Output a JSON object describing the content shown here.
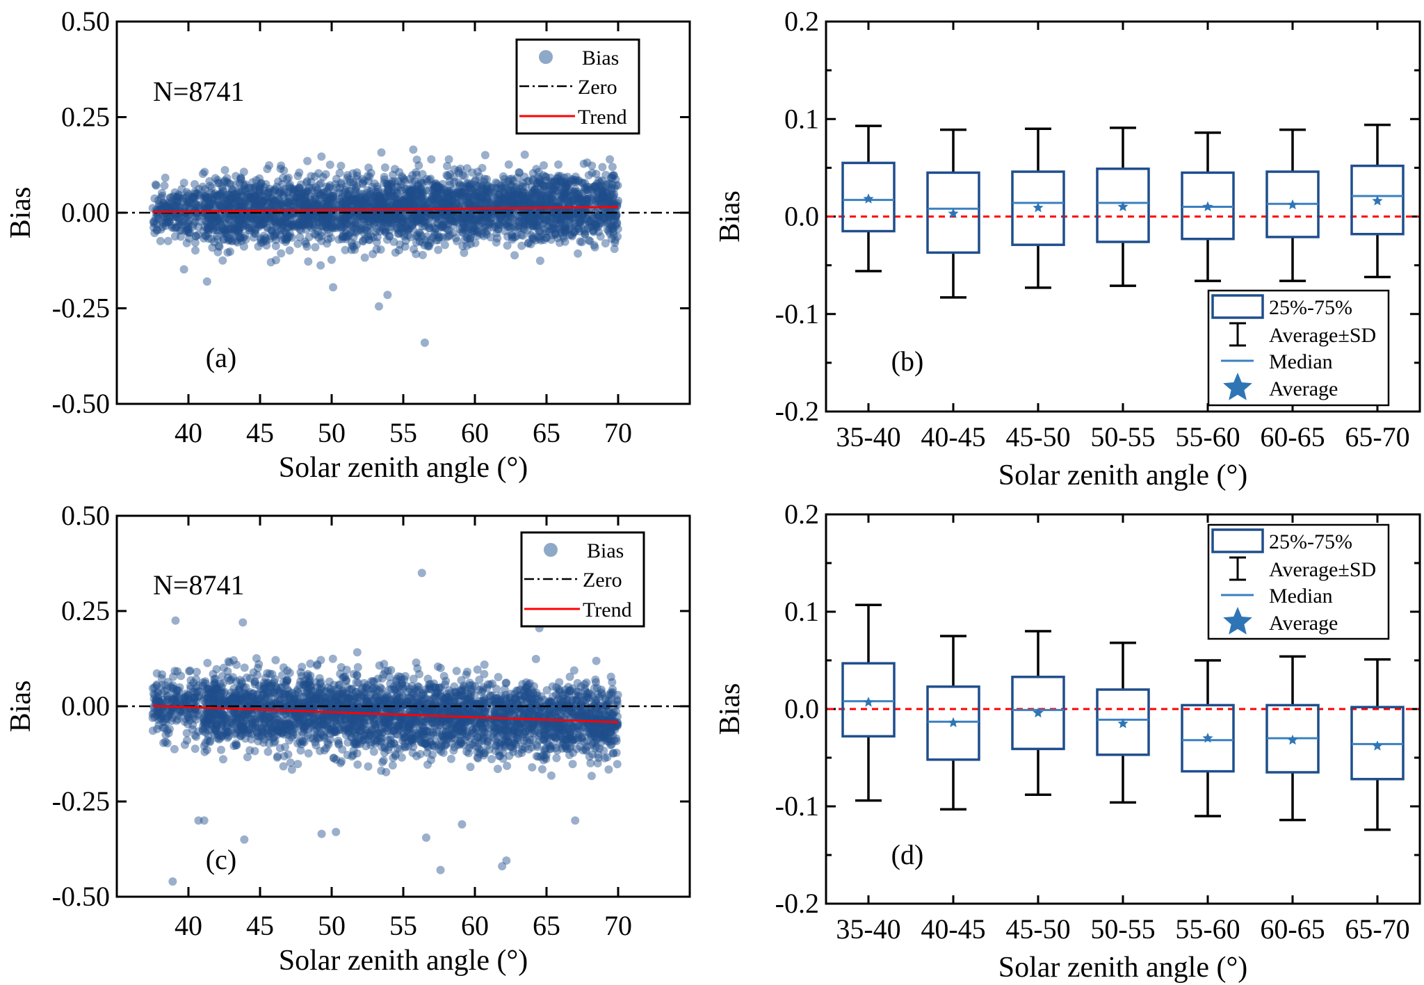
{
  "figure": {
    "panels": [
      "a",
      "b",
      "c",
      "d"
    ]
  },
  "colors": {
    "scatter": "#1f4e8c",
    "scatter_legend": "#8ea9c8",
    "box_edge": "#1f4e8c",
    "median": "#3a80bf",
    "average_star": "#2e75b6",
    "whisker": "#000000",
    "zero_line_scatter": "#000000",
    "zero_line_box": "#ff0000",
    "trend": "#ff0000"
  },
  "chart_data": [
    {
      "id": "a",
      "type": "scatter",
      "panel_label": "(a)",
      "annotation": "N=8741",
      "xlabel": "Solar zenith angle (°)",
      "ylabel": "Bias",
      "xlim": [
        35,
        75
      ],
      "ylim": [
        -0.5,
        0.5
      ],
      "xticks": [
        40,
        45,
        50,
        55,
        60,
        65,
        70
      ],
      "yticks": [
        -0.5,
        -0.25,
        0.0,
        0.25,
        0.5
      ],
      "ytick_labels": [
        "-0.50",
        "-0.25",
        "0.00",
        "0.25",
        "0.50"
      ],
      "n_points": 8741,
      "x_range_data": [
        37.5,
        70
      ],
      "point_spread": {
        "core_sd": 0.045,
        "mean_start": 0.002,
        "mean_end": 0.015
      },
      "trend": {
        "x": [
          37.5,
          70
        ],
        "y": [
          0.002,
          0.015
        ]
      },
      "zero_line": 0,
      "notable_outliers": [
        [
          56.5,
          -0.34
        ],
        [
          53.3,
          -0.245
        ],
        [
          53.9,
          -0.215
        ],
        [
          50.1,
          -0.195
        ],
        [
          41.3,
          -0.18
        ],
        [
          55.7,
          0.165
        ]
      ],
      "legend": {
        "position": "top-right",
        "entries": [
          "Bias",
          "Zero",
          "Trend"
        ]
      }
    },
    {
      "id": "b",
      "type": "box",
      "panel_label": "(b)",
      "xlabel": "Solar zenith angle (°)",
      "ylabel": "Bias",
      "ylim": [
        -0.2,
        0.2
      ],
      "yticks": [
        -0.2,
        -0.1,
        0.0,
        0.1,
        0.2
      ],
      "ytick_labels": [
        "-0.2",
        "-0.1",
        "0.0",
        "0.1",
        "0.2"
      ],
      "categories": [
        "35-40",
        "40-45",
        "45-50",
        "50-55",
        "55-60",
        "60-65",
        "65-70"
      ],
      "q1": [
        -0.015,
        -0.037,
        -0.029,
        -0.026,
        -0.023,
        -0.021,
        -0.018
      ],
      "q3": [
        0.055,
        0.045,
        0.046,
        0.049,
        0.045,
        0.046,
        0.052
      ],
      "median": [
        0.017,
        0.008,
        0.014,
        0.014,
        0.01,
        0.013,
        0.021
      ],
      "average": [
        0.018,
        0.003,
        0.009,
        0.01,
        0.01,
        0.012,
        0.016
      ],
      "sd_low": [
        -0.056,
        -0.083,
        -0.073,
        -0.071,
        -0.066,
        -0.066,
        -0.062
      ],
      "sd_high": [
        0.093,
        0.089,
        0.09,
        0.091,
        0.086,
        0.089,
        0.094
      ],
      "zero_line": 0,
      "legend": {
        "position": "bottom-right",
        "entries": [
          "25%-75%",
          "Average±SD",
          "Median",
          "Average"
        ]
      }
    },
    {
      "id": "c",
      "type": "scatter",
      "panel_label": "(c)",
      "annotation": "N=8741",
      "xlabel": "Solar zenith angle (°)",
      "ylabel": "Bias",
      "xlim": [
        35,
        75
      ],
      "ylim": [
        -0.5,
        0.5
      ],
      "xticks": [
        40,
        45,
        50,
        55,
        60,
        65,
        70
      ],
      "yticks": [
        -0.5,
        -0.25,
        0.0,
        0.25,
        0.5
      ],
      "ytick_labels": [
        "-0.50",
        "-0.25",
        "0.00",
        "0.25",
        "0.50"
      ],
      "n_points": 8741,
      "x_range_data": [
        37.5,
        70
      ],
      "point_spread": {
        "core_sd": 0.05,
        "mean_start": 0.001,
        "mean_end": -0.042
      },
      "trend": {
        "x": [
          37.5,
          70
        ],
        "y": [
          0.001,
          -0.042
        ]
      },
      "zero_line": 0,
      "notable_outliers": [
        [
          56.3,
          0.35
        ],
        [
          39.1,
          0.225
        ],
        [
          43.8,
          0.22
        ],
        [
          64.5,
          0.205
        ],
        [
          38.9,
          -0.46
        ],
        [
          57.6,
          -0.43
        ],
        [
          61.9,
          -0.42
        ],
        [
          62.2,
          -0.405
        ],
        [
          43.9,
          -0.35
        ],
        [
          56.6,
          -0.345
        ],
        [
          49.3,
          -0.335
        ],
        [
          50.3,
          -0.33
        ],
        [
          59.1,
          -0.31
        ],
        [
          40.7,
          -0.3
        ],
        [
          41.1,
          -0.3
        ],
        [
          67.0,
          -0.3
        ]
      ],
      "legend": {
        "position": "top-right",
        "entries": [
          "Bias",
          "Zero",
          "Trend"
        ]
      }
    },
    {
      "id": "d",
      "type": "box",
      "panel_label": "(d)",
      "xlabel": "Solar zenith angle (°)",
      "ylabel": "Bias",
      "ylim": [
        -0.2,
        0.2
      ],
      "yticks": [
        -0.2,
        -0.1,
        0.0,
        0.1,
        0.2
      ],
      "ytick_labels": [
        "-0.2",
        "-0.1",
        "0.0",
        "0.1",
        "0.2"
      ],
      "categories": [
        "35-40",
        "40-45",
        "45-50",
        "50-55",
        "55-60",
        "60-65",
        "65-70"
      ],
      "q1": [
        -0.028,
        -0.052,
        -0.041,
        -0.047,
        -0.064,
        -0.065,
        -0.072
      ],
      "q3": [
        0.047,
        0.023,
        0.033,
        0.02,
        0.004,
        0.004,
        0.002
      ],
      "median": [
        0.008,
        -0.013,
        -0.001,
        -0.011,
        -0.032,
        -0.03,
        -0.036
      ],
      "average": [
        0.007,
        -0.014,
        -0.004,
        -0.015,
        -0.03,
        -0.032,
        -0.038
      ],
      "sd_low": [
        -0.094,
        -0.103,
        -0.088,
        -0.096,
        -0.11,
        -0.114,
        -0.124
      ],
      "sd_high": [
        0.107,
        0.075,
        0.08,
        0.068,
        0.05,
        0.054,
        0.051
      ],
      "zero_line": 0,
      "legend": {
        "position": "top-right",
        "entries": [
          "25%-75%",
          "Average±SD",
          "Median",
          "Average"
        ]
      }
    }
  ]
}
